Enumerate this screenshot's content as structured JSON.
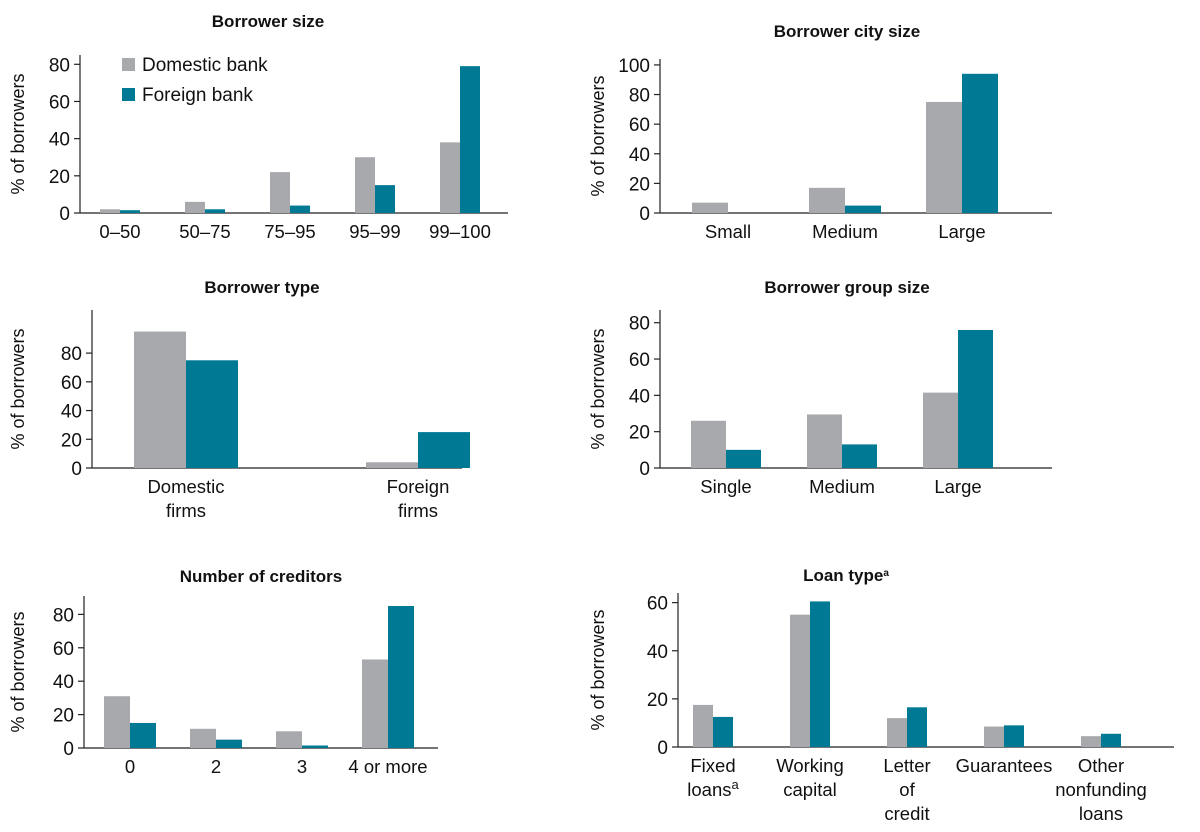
{
  "colors": {
    "domestic": "#a7a9ac",
    "foreign": "#007a94"
  },
  "legend": {
    "domestic": "Domestic bank",
    "foreign": "Foreign bank"
  },
  "chart_data": [
    {
      "id": "borrower-size",
      "type": "bar",
      "title": "Borrower size",
      "title_sup": "",
      "ylabel": "% of borrowers",
      "ylim": [
        0,
        85
      ],
      "yticks": [
        0,
        20,
        40,
        60,
        80
      ],
      "categories": [
        [
          "0–50"
        ],
        [
          "50–75"
        ],
        [
          "75–95"
        ],
        [
          "95–99"
        ],
        [
          "99–100"
        ]
      ],
      "series": [
        {
          "name": "Domestic bank",
          "values": [
            2,
            6,
            22,
            30,
            38
          ]
        },
        {
          "name": "Foreign bank",
          "values": [
            1.5,
            2,
            4,
            15,
            79
          ]
        }
      ],
      "legend_position": "top-left"
    },
    {
      "id": "borrower-city-size",
      "type": "bar",
      "title": "Borrower city size",
      "title_sup": "",
      "ylabel": "% of borrowers",
      "ylim": [
        0,
        104
      ],
      "yticks": [
        0,
        20,
        40,
        60,
        80,
        100
      ],
      "categories": [
        [
          "Small"
        ],
        [
          "Medium"
        ],
        [
          "Large"
        ]
      ],
      "series": [
        {
          "name": "Domestic bank",
          "values": [
            7,
            17,
            75
          ]
        },
        {
          "name": "Foreign bank",
          "values": [
            0,
            5,
            94
          ]
        }
      ]
    },
    {
      "id": "borrower-type",
      "type": "bar",
      "title": "Borrower type",
      "title_sup": "",
      "ylabel": "% of borrowers",
      "ylim": [
        0,
        110
      ],
      "yticks": [
        0,
        20,
        40,
        60,
        80
      ],
      "categories": [
        [
          "Domestic",
          "firms"
        ],
        [
          "Foreign",
          "firms"
        ]
      ],
      "series": [
        {
          "name": "Domestic bank",
          "values": [
            95,
            4
          ]
        },
        {
          "name": "Foreign bank",
          "values": [
            75,
            25
          ]
        }
      ]
    },
    {
      "id": "borrower-group-size",
      "type": "bar",
      "title": "Borrower group size",
      "title_sup": "",
      "ylabel": "% of borrowers",
      "ylim": [
        0,
        87
      ],
      "yticks": [
        0,
        20,
        40,
        60,
        80
      ],
      "categories": [
        [
          "Single"
        ],
        [
          "Medium"
        ],
        [
          "Large"
        ]
      ],
      "series": [
        {
          "name": "Domestic bank",
          "values": [
            26,
            29.5,
            41.5
          ]
        },
        {
          "name": "Foreign bank",
          "values": [
            10,
            13,
            76
          ]
        }
      ]
    },
    {
      "id": "number-of-creditors",
      "type": "bar",
      "title": "Number of creditors",
      "title_sup": "",
      "ylabel": "% of borrowers",
      "ylim": [
        0,
        91
      ],
      "yticks": [
        0,
        20,
        40,
        60,
        80
      ],
      "categories": [
        [
          "0"
        ],
        [
          "2"
        ],
        [
          "3"
        ],
        [
          "4 or more"
        ]
      ],
      "series": [
        {
          "name": "Domestic bank",
          "values": [
            31,
            11.5,
            10,
            53
          ]
        },
        {
          "name": "Foreign bank",
          "values": [
            15,
            5,
            1.5,
            85
          ]
        }
      ]
    },
    {
      "id": "loan-type",
      "type": "bar",
      "title": "Loan type",
      "title_sup": "a",
      "ylabel": "% of borrowers",
      "ylim": [
        0,
        64
      ],
      "yticks": [
        0,
        20,
        40,
        60
      ],
      "categories": [
        [
          "Fixed",
          "loans"
        ],
        [
          "Working",
          "capital"
        ],
        [
          "Letter",
          "of",
          "credit"
        ],
        [
          "Guarantees"
        ],
        [
          "Other",
          "nonfunding",
          "loans"
        ]
      ],
      "category_sups": [
        "a",
        "",
        "",
        "",
        ""
      ],
      "series": [
        {
          "name": "Domestic bank",
          "values": [
            17.5,
            55,
            12,
            8.5,
            4.5
          ]
        },
        {
          "name": "Foreign bank",
          "values": [
            12.5,
            60.5,
            16.5,
            9,
            5.5
          ]
        }
      ]
    }
  ]
}
